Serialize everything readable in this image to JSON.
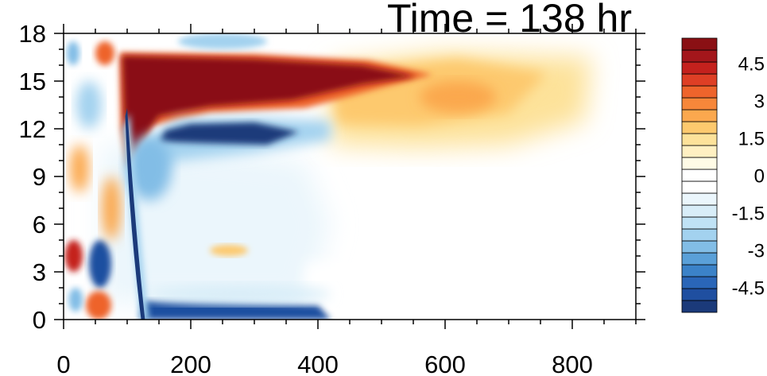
{
  "chart_data": {
    "type": "heatmap",
    "title": "Time = 138 hr",
    "xlabel": "",
    "ylabel": "",
    "xlim": [
      0,
      900
    ],
    "ylim": [
      0,
      18
    ],
    "x_ticks": [
      0,
      200,
      400,
      600,
      800
    ],
    "y_ticks": [
      0,
      3,
      6,
      9,
      12,
      15,
      18
    ],
    "x_tick_labels": [
      "0",
      "200",
      "400",
      "600",
      "800"
    ],
    "y_tick_labels": [
      "0",
      "3",
      "6",
      "9",
      "12",
      "15",
      "18"
    ],
    "colorbar": {
      "levels": [
        -5.5,
        -5,
        -4.5,
        -4,
        -3.5,
        -3,
        -2.5,
        -2,
        -1.5,
        -1,
        -0.5,
        0,
        0.5,
        1,
        1.5,
        2,
        2.5,
        3,
        3.5,
        4,
        4.5,
        5,
        5.5
      ],
      "labels": [
        "4.5",
        "3",
        "1.5",
        "0",
        "-1.5",
        "-3",
        "-4.5"
      ],
      "label_values": [
        4.5,
        3,
        1.5,
        0,
        -1.5,
        -3,
        -4.5
      ],
      "colors": [
        "#1b3a7a",
        "#1f4fa0",
        "#2a66b8",
        "#3b82c8",
        "#5aa0d8",
        "#82bde6",
        "#a3d2ef",
        "#c0e2f5",
        "#d8edf8",
        "#ebf6fc",
        "#ffffff",
        "#ffffff",
        "#fffbe6",
        "#fff0c2",
        "#fde29a",
        "#fdc96e",
        "#fba84e",
        "#f7873a",
        "#ee642c",
        "#de3f25",
        "#c4211d",
        "#a3161b",
        "#8a1014"
      ]
    },
    "features": [
      {
        "name": "upper positive band",
        "sign": "positive",
        "x_range": [
          90,
          560
        ],
        "y_range": [
          12.5,
          16.5
        ],
        "peak": 5.5
      },
      {
        "name": "positive tail",
        "sign": "positive",
        "x_range": [
          420,
          820
        ],
        "y_range": [
          11,
          16
        ],
        "peak": 2
      },
      {
        "name": "negative band below",
        "sign": "negative",
        "x_range": [
          110,
          380
        ],
        "y_range": [
          10,
          13
        ],
        "peak": -5.5
      },
      {
        "name": "near-surface negative",
        "sign": "negative",
        "x_range": [
          120,
          420
        ],
        "y_range": [
          0,
          1
        ],
        "peak": -5
      },
      {
        "name": "slanted negative streak",
        "sign": "negative",
        "x_range": [
          95,
          130
        ],
        "y_range": [
          0,
          13
        ],
        "peak": -5.5
      },
      {
        "name": "left positive blob",
        "sign": "positive",
        "x_range": [
          0,
          30
        ],
        "y_range": [
          3,
          5
        ],
        "peak": 4.5
      },
      {
        "name": "left negative blob",
        "sign": "negative",
        "x_range": [
          40,
          75
        ],
        "y_range": [
          2,
          5
        ],
        "peak": -5
      }
    ]
  }
}
